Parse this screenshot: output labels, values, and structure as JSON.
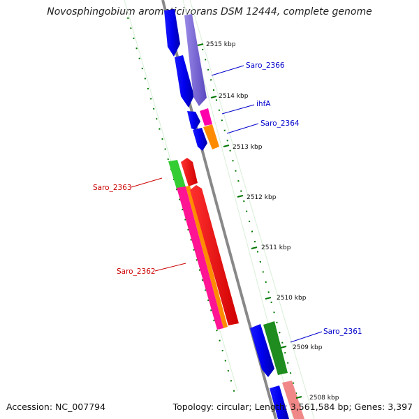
{
  "title": "Novosphingobium aromaticivorans DSM 12444, complete genome",
  "footer": {
    "accession": "Accession: NC_007794",
    "summary": "Topology: circular; Length: 3,561,584 bp; Genes: 3,397"
  },
  "colors": {
    "backbone": "#888888",
    "tick": "#007700",
    "forward_label": "#0000cc",
    "reverse_label": "#cc0000"
  },
  "ticks": [
    "2515 kbp",
    "2514 kbp",
    "2513 kbp",
    "2512 kbp",
    "2511 kbp",
    "2510 kbp",
    "2509 kbp",
    "2508 kbp"
  ],
  "gene_labels": {
    "forward": [
      "Saro_2366",
      "ihfA",
      "Saro_2364",
      "Saro_2361"
    ],
    "reverse": [
      "Saro_2363",
      "Saro_2362"
    ]
  }
}
